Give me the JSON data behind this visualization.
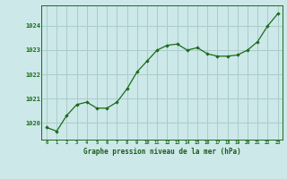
{
  "x": [
    0,
    1,
    2,
    3,
    4,
    5,
    6,
    7,
    8,
    9,
    10,
    11,
    12,
    13,
    14,
    15,
    16,
    17,
    18,
    19,
    20,
    21,
    22,
    23
  ],
  "y": [
    1019.8,
    1019.65,
    1020.3,
    1020.75,
    1020.85,
    1020.6,
    1020.6,
    1020.85,
    1021.4,
    1022.1,
    1022.55,
    1023.0,
    1023.2,
    1023.25,
    1023.0,
    1023.1,
    1022.85,
    1022.75,
    1022.75,
    1022.8,
    1023.0,
    1023.35,
    1024.0,
    1024.5
  ],
  "line_color": "#1a6b1a",
  "marker_color": "#1a6b1a",
  "bg_color": "#cce8e8",
  "grid_color": "#aacccc",
  "xlabel": "Graphe pression niveau de la mer (hPa)",
  "xlabel_color": "#1a5c1a",
  "tick_color": "#1a6b1a",
  "ylim_min": 1019.3,
  "ylim_max": 1024.85,
  "yticks": [
    1020,
    1021,
    1022,
    1023,
    1024
  ],
  "xticks": [
    0,
    1,
    2,
    3,
    4,
    5,
    6,
    7,
    8,
    9,
    10,
    11,
    12,
    13,
    14,
    15,
    16,
    17,
    18,
    19,
    20,
    21,
    22,
    23
  ]
}
